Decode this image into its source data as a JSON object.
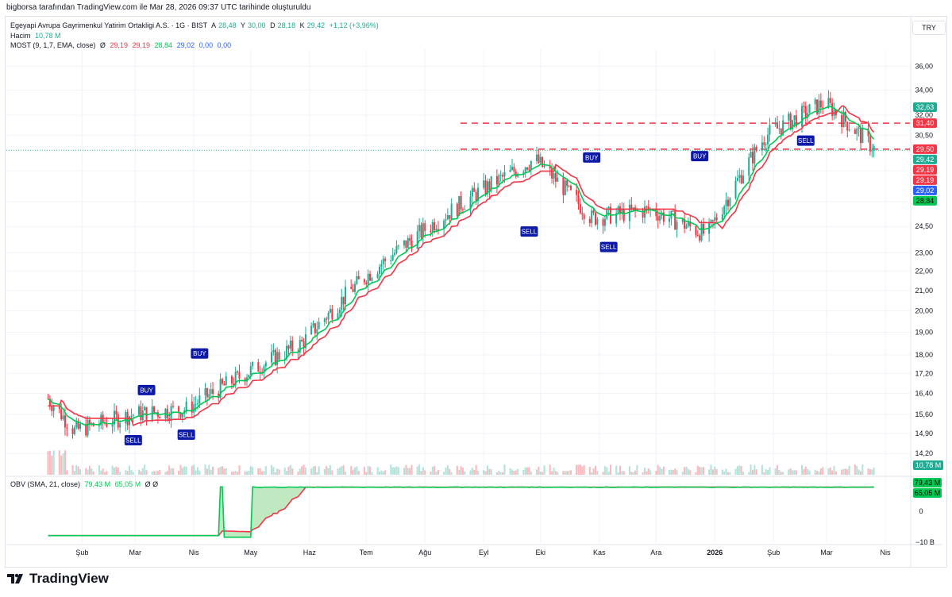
{
  "header": {
    "attribution": "bigborsa tarafından TradingView.com ile Mar 28, 2026 09:37 UTC tarihinde oluşturuldu"
  },
  "legend": {
    "symbol": "Egeyapi Avrupa Gayrimenkul Yatirim Ortakligi A.S. · 1G · BIST",
    "o_label": "A",
    "o_value": "28,48",
    "h_label": "Y",
    "h_value": "30,00",
    "l_label": "D",
    "l_value": "28,18",
    "c_label": "K",
    "c_value": "29,42",
    "change": "+1,12 (+3,96%)",
    "volume_label": "Hacim",
    "volume_value": "10,78 M",
    "most_label": "MOST (9, 1,7, EMA, close)",
    "most_icon": "Ø",
    "most_v1": "29,19",
    "most_v2": "29,19",
    "most_v3": "28,84",
    "most_v4": "29,02",
    "most_v5": "0,00",
    "most_v6": "0,00",
    "obv_label": "OBV (SMA, 21, close)",
    "obv_v1": "79,43 M",
    "obv_v2": "65,05 M",
    "obv_icon": "Ø  Ø"
  },
  "currency_button": "TRY",
  "footer": {
    "brand": "TradingView"
  },
  "colors": {
    "up": "#22ab94",
    "down": "#f23645",
    "most_green": "#00c853",
    "most_red": "#f23645",
    "signal_bg": "#0d1aa8",
    "obv_line": "#00c853",
    "obv_fill": "#a5e0a8"
  },
  "chart_data": {
    "type": "candlestick",
    "y_scale": "log",
    "y_ticks": [
      "36,00",
      "34,00",
      "32,00",
      "30,50",
      "28,00",
      "26,00",
      "24,50",
      "23,00",
      "22,00",
      "21,00",
      "20,00",
      "19,00",
      "18,00",
      "17,20",
      "16,40",
      "15,60",
      "14,90",
      "14,20"
    ],
    "x_ticks": [
      "Şub",
      "Mar",
      "Nis",
      "May",
      "Haz",
      "Tem",
      "Ağu",
      "Eyl",
      "Eki",
      "Kas",
      "Ara",
      "2026",
      "Şub",
      "Mar",
      "Nis"
    ],
    "price_labels": [
      {
        "text": "32,63",
        "value": 32.63,
        "color": "#22ab94"
      },
      {
        "text": "31,40",
        "value": 31.4,
        "color": "#f23645"
      },
      {
        "text": "29,50",
        "value": 29.5,
        "color": "#f23645"
      },
      {
        "text": "29,42",
        "value": 29.42,
        "color": "#22ab94"
      },
      {
        "text": "29,19",
        "value": 29.19,
        "color": "#f23645"
      },
      {
        "text": "29,19",
        "value": 29.19,
        "color": "#f23645"
      },
      {
        "text": "29,02",
        "value": 29.02,
        "color": "#2962ff"
      },
      {
        "text": "28,84",
        "value": 28.84,
        "color": "#00c853"
      }
    ],
    "volume_label": {
      "text": "10,78 M",
      "color": "#22ab94"
    },
    "hlines": [
      {
        "value": 31.4,
        "color": "#f23645"
      },
      {
        "value": 29.5,
        "color": "#f23645"
      }
    ],
    "closes": [
      {
        "month": "2025-01",
        "value": 15.0
      },
      {
        "month": "2025-02",
        "value": 15.6
      },
      {
        "month": "2025-03",
        "value": 15.8
      },
      {
        "month": "2025-04",
        "value": 17.2
      },
      {
        "month": "2025-05",
        "value": 18.5
      },
      {
        "month": "2025-06",
        "value": 21.5
      },
      {
        "month": "2025-07",
        "value": 24.0
      },
      {
        "month": "2025-08",
        "value": 26.5
      },
      {
        "month": "2025-09",
        "value": 28.8
      },
      {
        "month": "2025-10",
        "value": 25.0
      },
      {
        "month": "2025-11",
        "value": 25.5
      },
      {
        "month": "2025-12",
        "value": 24.0
      },
      {
        "month": "2026-01",
        "value": 30.5
      },
      {
        "month": "2026-02",
        "value": 33.0
      },
      {
        "month": "2026-03",
        "value": 29.42
      }
    ],
    "signals": [
      {
        "text": "SELL",
        "date": "2025-02-28",
        "price": 14.9
      },
      {
        "text": "BUY",
        "date": "2025-03-07",
        "price": 16.3
      },
      {
        "text": "SELL",
        "date": "2025-03-28",
        "price": 15.1
      },
      {
        "text": "BUY",
        "date": "2025-04-04",
        "price": 17.8
      },
      {
        "text": "SELL",
        "date": "2025-09-25",
        "price": 24.6
      },
      {
        "text": "BUY",
        "date": "2025-10-28",
        "price": 28.5
      },
      {
        "text": "SELL",
        "date": "2025-11-06",
        "price": 23.7
      },
      {
        "text": "BUY",
        "date": "2025-12-24",
        "price": 28.6
      },
      {
        "text": "SELL",
        "date": "2026-02-18",
        "price": 30.6
      }
    ],
    "obv": {
      "label": "OBV (SMA, 21, close)",
      "values": [
        "79,43 M",
        "65,05 M"
      ],
      "y_ticks": [
        "0",
        "−10 B"
      ]
    }
  }
}
